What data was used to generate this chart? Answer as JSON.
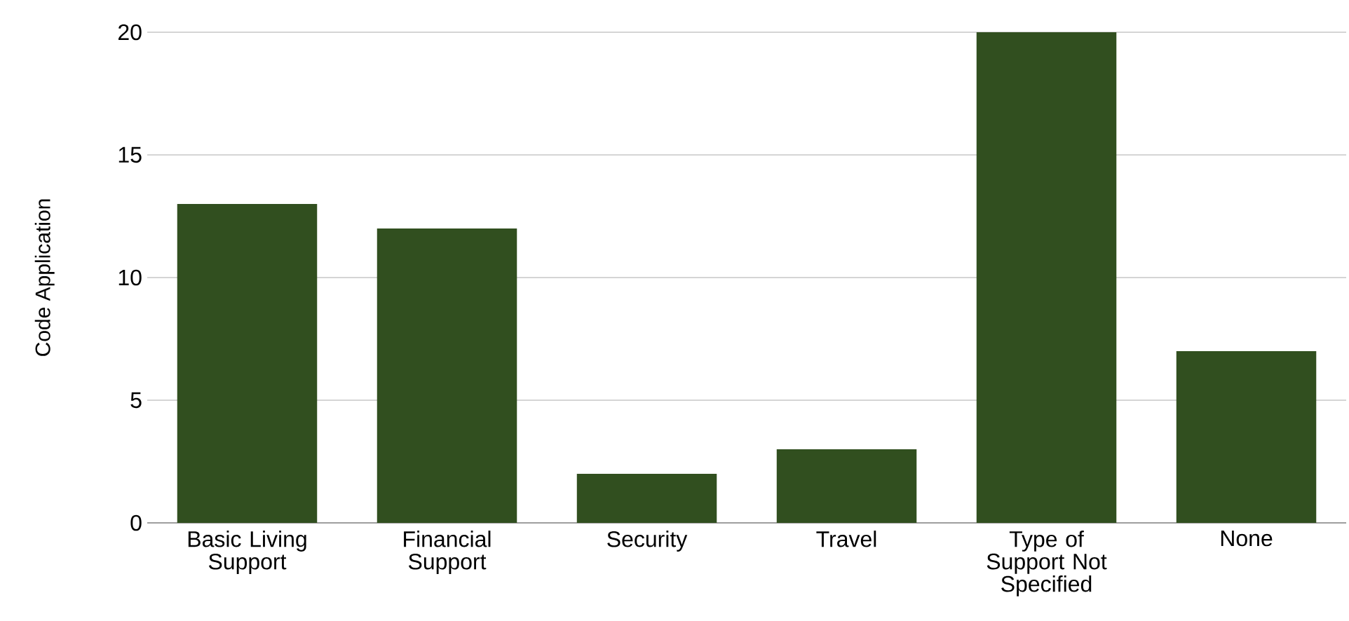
{
  "chart_data": {
    "type": "bar",
    "ylabel": "Code Application",
    "categories": [
      "Basic Living Support",
      "Financial Support",
      "Security",
      "Travel",
      "Type of Support Not Specified",
      "None"
    ],
    "values": [
      13,
      12,
      2,
      3,
      20,
      7
    ],
    "color": "#314f1f",
    "ylim": [
      0,
      20
    ],
    "yticks": [
      0,
      5,
      10,
      15,
      20
    ],
    "grid": "y"
  }
}
